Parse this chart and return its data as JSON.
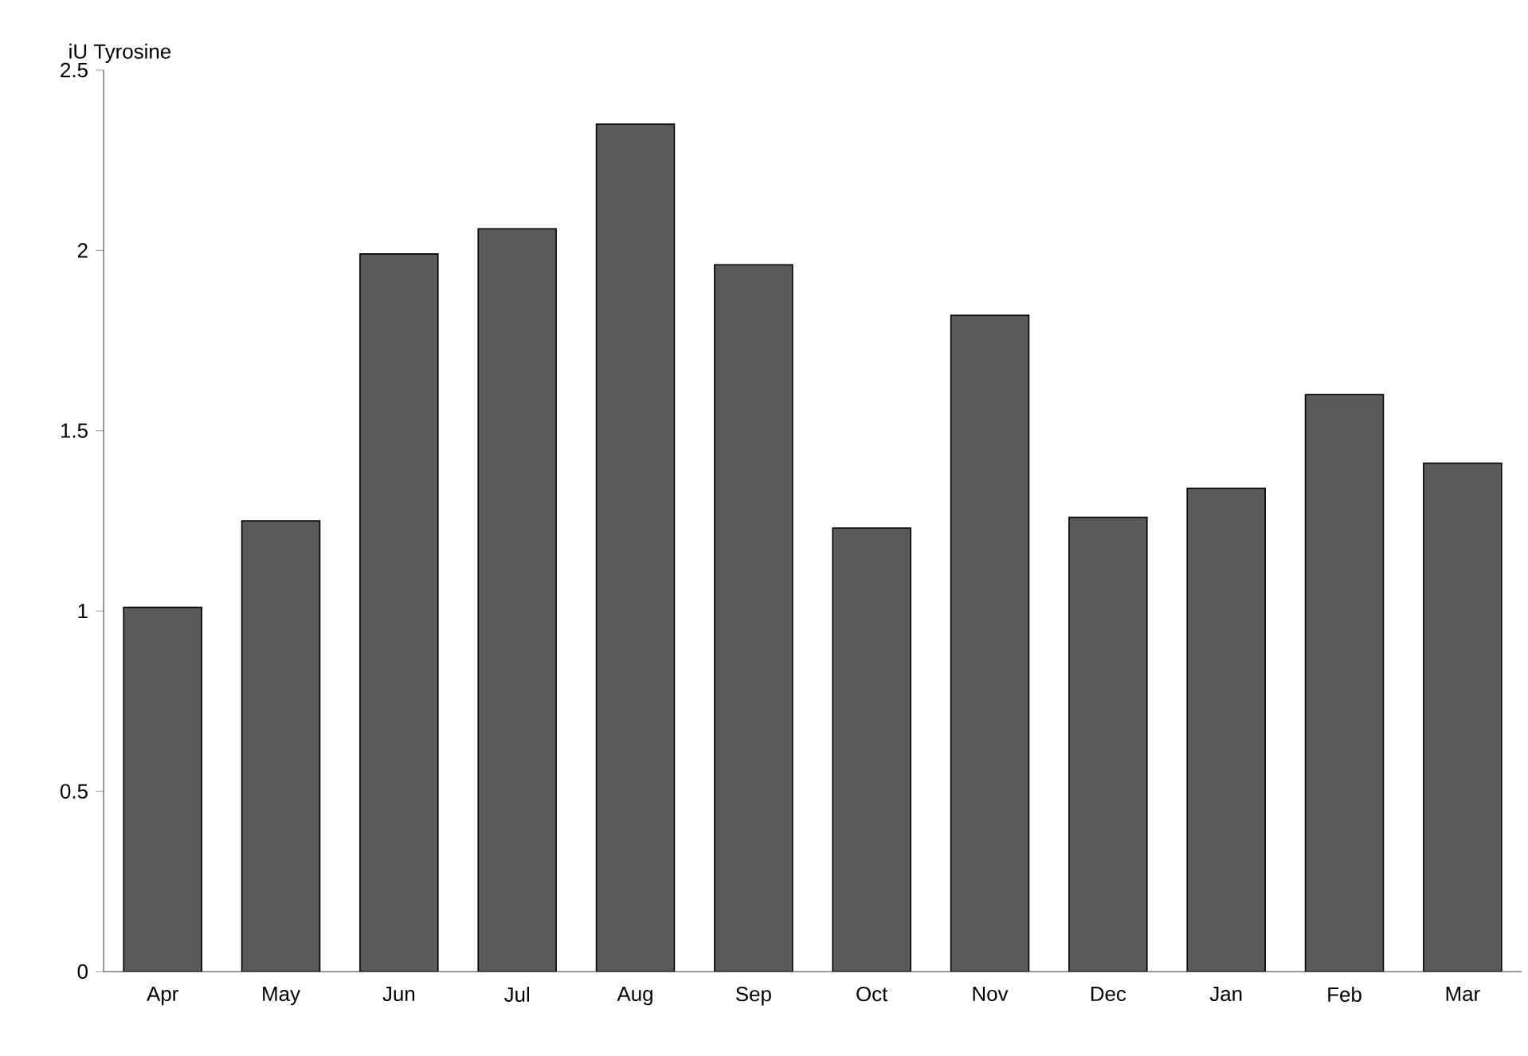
{
  "chart_data": {
    "type": "bar",
    "ylabel": "iU Tyrosine",
    "categories": [
      "Apr",
      "May",
      "Jun",
      "Jul",
      "Aug",
      "Sep",
      "Oct",
      "Nov",
      "Dec",
      "Jan",
      "Feb",
      "Mar"
    ],
    "values": [
      1.01,
      1.25,
      1.99,
      2.06,
      2.35,
      1.96,
      1.23,
      1.82,
      1.26,
      1.34,
      1.6,
      1.41
    ],
    "color": "#5a5a5a",
    "ylim": [
      0,
      2.5
    ],
    "yticks": [
      0,
      0.5,
      1,
      1.5,
      2,
      2.5
    ]
  }
}
